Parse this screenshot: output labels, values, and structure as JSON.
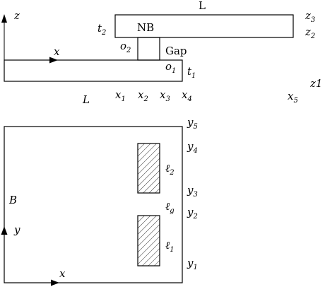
{
  "top_view": {
    "axis_z": "z",
    "axis_x": "x",
    "L_top": "L",
    "NB": "NB",
    "t2": {
      "base": "t",
      "sub": "2"
    },
    "o2": {
      "base": "o",
      "sub": "2"
    },
    "gap": "Gap",
    "o1": {
      "base": "o",
      "sub": "1"
    },
    "t1": {
      "base": "t",
      "sub": "1"
    },
    "z3": {
      "base": "z",
      "sub": "3"
    },
    "z2": {
      "base": "z",
      "sub": "2"
    },
    "z1": "z1",
    "L_bottom": "L",
    "x_ticks": [
      {
        "base": "x",
        "sub": "1"
      },
      {
        "base": "x",
        "sub": "2"
      },
      {
        "base": "x",
        "sub": "3"
      },
      {
        "base": "x",
        "sub": "4"
      },
      {
        "base": "x",
        "sub": "5"
      }
    ]
  },
  "bottom_view": {
    "B": "B",
    "axis_y": "y",
    "axis_x": "x",
    "y5": {
      "base": "y",
      "sub": "5"
    },
    "y4": {
      "base": "y",
      "sub": "4"
    },
    "y3": {
      "base": "y",
      "sub": "3"
    },
    "y2": {
      "base": "y",
      "sub": "2"
    },
    "y1": {
      "base": "y",
      "sub": "1"
    },
    "l2": {
      "base": "ℓ",
      "sub": "2"
    },
    "lg": {
      "base": "ℓ",
      "sub": "g"
    },
    "l1": {
      "base": "ℓ",
      "sub": "1"
    }
  }
}
